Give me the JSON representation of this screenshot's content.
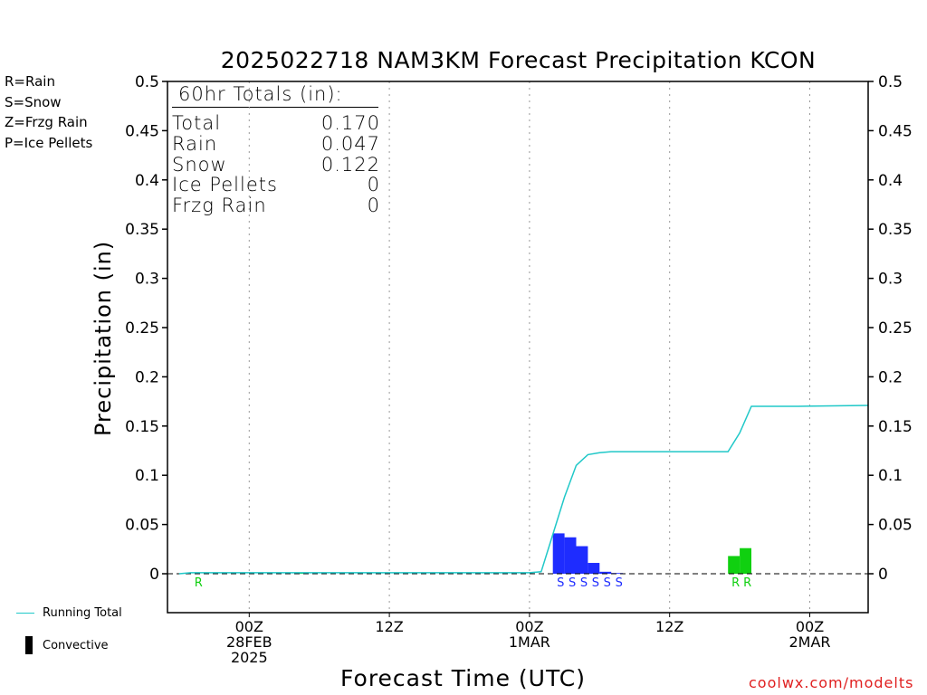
{
  "title": "2025022718 NAM3KM Forecast Precipitation KCON",
  "key": {
    "rain": "R=Rain",
    "snow": "S=Snow",
    "frzg_rain": "Z=Frzg Rain",
    "ice_pellets": "P=Ice Pellets"
  },
  "totals": {
    "header": "60hr Totals (in):",
    "rows": [
      {
        "label": "Total",
        "value": "0.170"
      },
      {
        "label": "Rain",
        "value": "0.047"
      },
      {
        "label": "Snow",
        "value": "0.122"
      },
      {
        "label": "Ice Pellets",
        "value": "0"
      },
      {
        "label": "Frzg Rain",
        "value": "0"
      }
    ]
  },
  "legend_bottom": {
    "running_total": "Running Total",
    "convective": "Convective"
  },
  "watermark": "coolwx.com/modelts",
  "colors": {
    "rain": "#10d010",
    "snow": "#1e2cff",
    "frzg_rain": "#f08a2c",
    "ice_pellets": "#e0208a",
    "running_total": "#20c8c8",
    "convective": "#000000"
  },
  "chart_data": {
    "type": "bar",
    "title": "2025022718 NAM3KM Forecast Precipitation KCON",
    "xlabel": "Forecast Time (UTC)",
    "ylabel": "Precipitation (in)",
    "ylim": [
      0,
      0.5
    ],
    "yticks": [
      "0",
      "0.05",
      "0.1",
      "0.15",
      "0.2",
      "0.25",
      "0.3",
      "0.35",
      "0.4",
      "0.45",
      "0.5"
    ],
    "xlim_hours": [
      -7,
      53
    ],
    "xticks": [
      {
        "hour": 0,
        "lines": [
          "00Z",
          "28FEB",
          "2025"
        ]
      },
      {
        "hour": 12,
        "lines": [
          "12Z"
        ]
      },
      {
        "hour": 24,
        "lines": [
          "00Z",
          "1MAR"
        ]
      },
      {
        "hour": 36,
        "lines": [
          "12Z"
        ]
      },
      {
        "hour": 48,
        "lines": [
          "00Z",
          "2MAR"
        ]
      }
    ],
    "x_units": "forecast hour relative to 00Z 28FEB",
    "bars": [
      {
        "hour": 5,
        "value": 0.0003,
        "type": "R"
      },
      {
        "hour": 27,
        "value": 0.041,
        "type": "S"
      },
      {
        "hour": 28,
        "value": 0.037,
        "type": "S"
      },
      {
        "hour": 29,
        "value": 0.028,
        "type": "S"
      },
      {
        "hour": 30,
        "value": 0.011,
        "type": "S"
      },
      {
        "hour": 31,
        "value": 0.002,
        "type": "S"
      },
      {
        "hour": 32,
        "value": 0.0005,
        "type": "S"
      },
      {
        "hour": 42,
        "value": 0.018,
        "type": "R"
      },
      {
        "hour": 43,
        "value": 0.026,
        "type": "R"
      }
    ],
    "ptype_marks": [
      {
        "hour": -5,
        "type": "R"
      },
      {
        "hour": 26,
        "type": "S"
      },
      {
        "hour": 27,
        "type": "S"
      },
      {
        "hour": 28,
        "type": "S"
      },
      {
        "hour": 29,
        "type": "S"
      },
      {
        "hour": 30,
        "type": "S"
      },
      {
        "hour": 31,
        "type": "S"
      },
      {
        "hour": 41,
        "type": "R"
      },
      {
        "hour": 42,
        "type": "R"
      }
    ],
    "running_total": [
      {
        "hour": -6,
        "value": 0.0
      },
      {
        "hour": -5,
        "value": 0.001
      },
      {
        "hour": 24,
        "value": 0.001
      },
      {
        "hour": 25,
        "value": 0.002
      },
      {
        "hour": 26,
        "value": 0.04
      },
      {
        "hour": 27,
        "value": 0.078
      },
      {
        "hour": 28,
        "value": 0.11
      },
      {
        "hour": 29,
        "value": 0.121
      },
      {
        "hour": 30,
        "value": 0.123
      },
      {
        "hour": 31,
        "value": 0.124
      },
      {
        "hour": 32,
        "value": 0.124
      },
      {
        "hour": 41,
        "value": 0.124
      },
      {
        "hour": 42,
        "value": 0.143
      },
      {
        "hour": 43,
        "value": 0.17
      },
      {
        "hour": 47,
        "value": 0.17
      },
      {
        "hour": 53,
        "value": 0.171
      }
    ],
    "grid": "dotted vertical at xticks",
    "zero_line": "dashed"
  }
}
